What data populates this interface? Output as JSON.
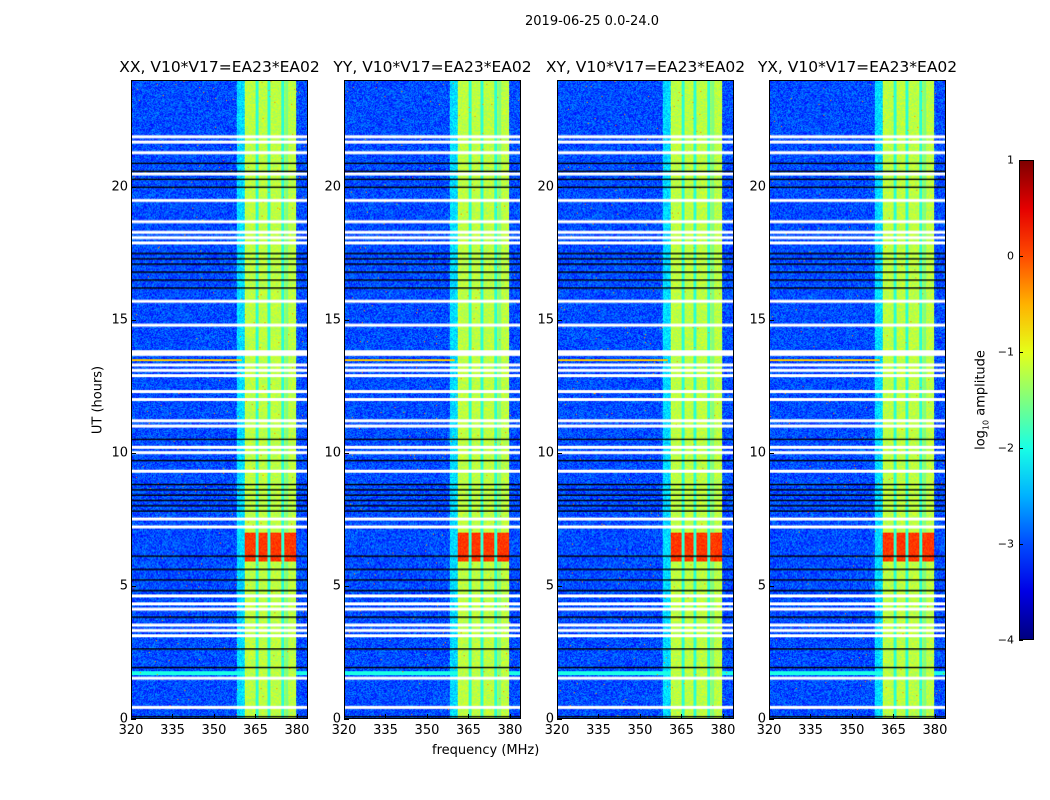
{
  "chart_data": {
    "type": "heatmap",
    "suptitle": "2019-06-25 0.0-24.0",
    "xlabel": "frequency (MHz)",
    "ylabel": "UT (hours)",
    "xlim": [
      320,
      384
    ],
    "ylim": [
      0,
      24
    ],
    "xticks": [
      "320",
      "335",
      "350",
      "365",
      "380"
    ],
    "yticks": [
      "0",
      "5",
      "10",
      "15",
      "20"
    ],
    "panels": [
      {
        "title": "XX, V10*V17=EA23*EA02"
      },
      {
        "title": "YY, V10*V17=EA23*EA02"
      },
      {
        "title": "XY, V10*V17=EA23*EA02"
      },
      {
        "title": "YX, V10*V17=EA23*EA02"
      }
    ],
    "colorbar": {
      "label": "log10 amplitude",
      "label_main": "log",
      "label_sub": "10",
      "label_rest": " amplitude",
      "range": [
        -4,
        1
      ],
      "ticks": [
        "1",
        "0",
        "−1",
        "−2",
        "−3",
        "−4"
      ],
      "colormap": "jet"
    },
    "rfi_band_mhz": [
      361,
      380
    ],
    "background_level": -3,
    "band_level": -1.2,
    "bright_band_hours": [
      5.9,
      7.0
    ],
    "flagged_white_hours": [
      0.4,
      1.5,
      3.1,
      3.3,
      3.5,
      4.1,
      4.3,
      4.6,
      7.2,
      7.5,
      9.3,
      10.0,
      10.2,
      11.0,
      11.2,
      12.0,
      12.3,
      12.9,
      13.1,
      13.3,
      13.7,
      13.8,
      14.8,
      15.7,
      17.9,
      18.1,
      18.3,
      18.7,
      19.5,
      20.5,
      21.3,
      21.7,
      21.9
    ],
    "flagged_black_hours": [
      0.05,
      1.9,
      2.6,
      3.8,
      4.8,
      5.2,
      5.6,
      6.1,
      7.8,
      8.0,
      8.2,
      8.4,
      8.6,
      8.8,
      9.7,
      10.5,
      16.2,
      16.5,
      16.8,
      17.1,
      17.3,
      17.5,
      20.0,
      20.3,
      20.6,
      20.9
    ]
  }
}
